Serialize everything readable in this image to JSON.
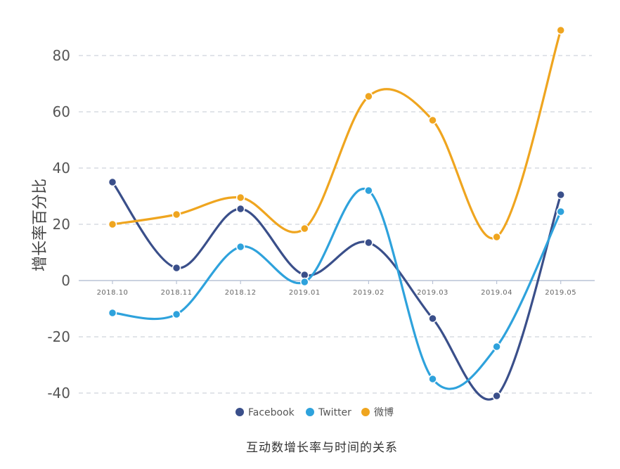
{
  "chart_data": {
    "type": "line",
    "title": "互动数增长率与时间的关系",
    "xlabel": "",
    "ylabel": "增长率百分比",
    "categories": [
      "2018.10",
      "2018.11",
      "2018.12",
      "2019.01",
      "2019.02",
      "2019.03",
      "2019.04",
      "2019.05"
    ],
    "yticks": [
      80,
      60,
      40,
      20,
      0,
      -20,
      -40
    ],
    "ylim": [
      -40,
      80
    ],
    "grid": true,
    "legend_position": "bottom",
    "series": [
      {
        "name": "Facebook",
        "color": "#3a4f8a",
        "values": [
          35,
          4.5,
          25.5,
          2,
          13.5,
          -13.5,
          -41,
          30.5
        ]
      },
      {
        "name": "Twitter",
        "color": "#2ea2dc",
        "values": [
          -11.5,
          -12,
          12,
          -0.5,
          32,
          -35,
          -23.5,
          24.5
        ]
      },
      {
        "name": "微博",
        "color": "#efa51f",
        "values": [
          20,
          23.5,
          29.5,
          18.5,
          65.5,
          57,
          15.5,
          89
        ]
      }
    ]
  }
}
